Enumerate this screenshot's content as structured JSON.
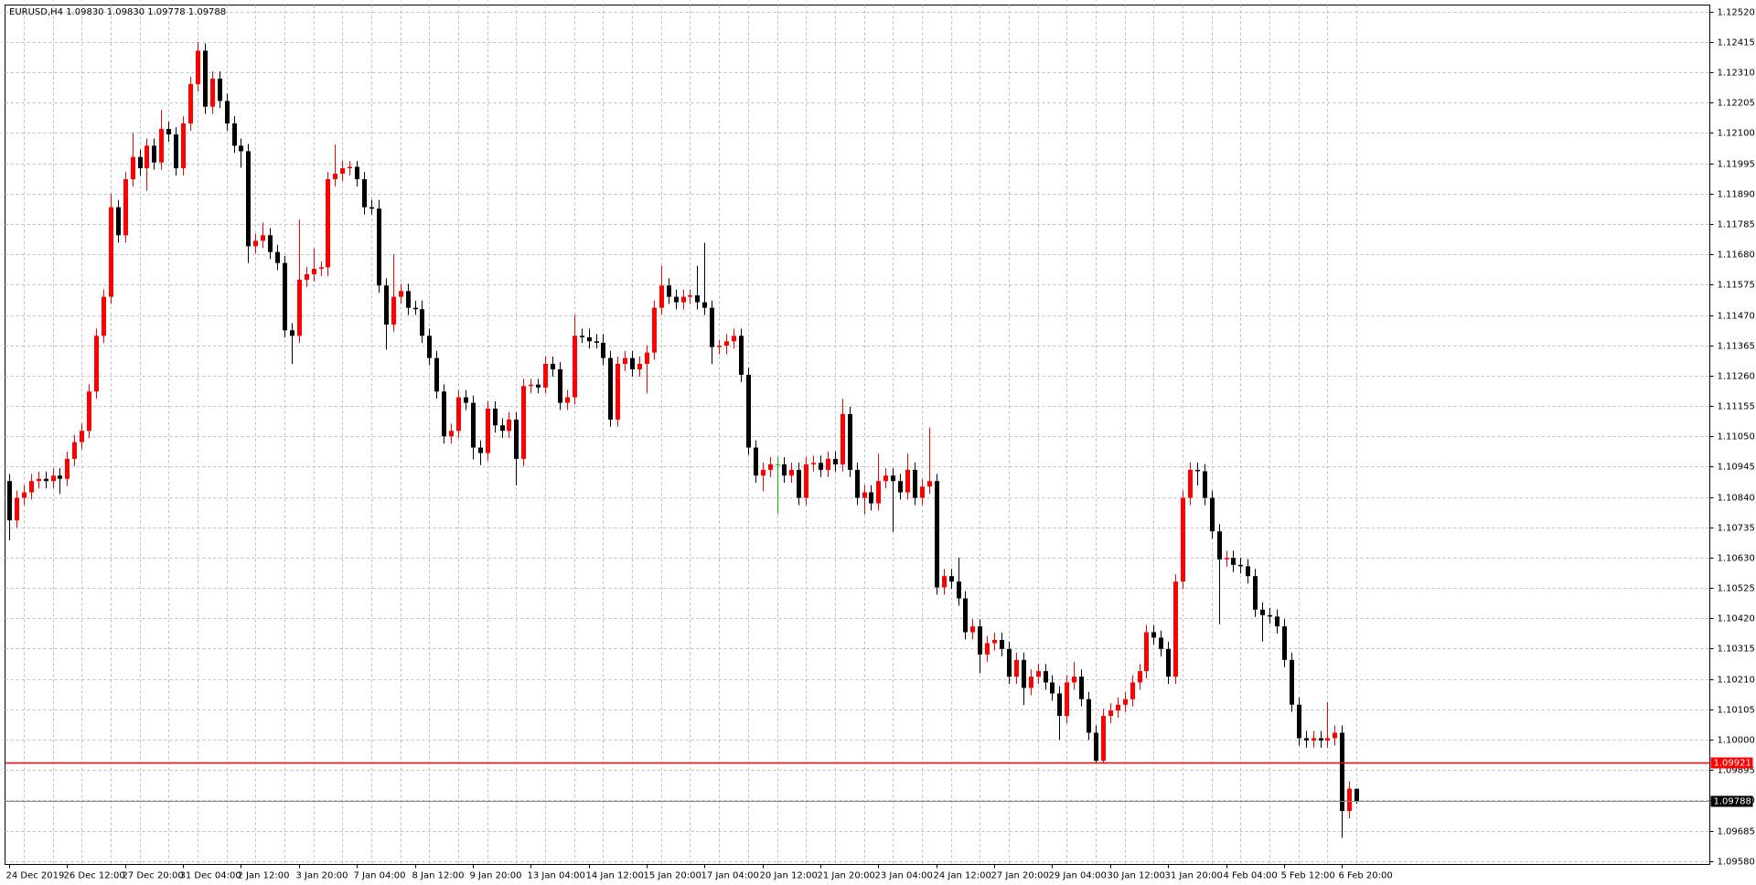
{
  "chart_data": {
    "type": "candlestick",
    "title": "EURUSD,H4  1.09830 1.09830 1.09778 1.09788",
    "up_color": "#ff0000",
    "down_color": "#000000",
    "doji_color": "#00c800",
    "grid": true,
    "ylim": [
      1.09568,
      1.12543
    ],
    "yticks": [
      {
        "value": 1.1252,
        "label": "1.12520"
      },
      1.12415,
      {
        "value": 1.1231,
        "label": "1.12310"
      },
      1.12205,
      {
        "value": 1.121,
        "label": "1.12100"
      },
      1.11995,
      {
        "value": 1.1189,
        "label": "1.11890"
      },
      1.11785,
      {
        "value": 1.1168,
        "label": "1.11680"
      },
      1.11575,
      {
        "value": 1.1147,
        "label": "1.11470"
      },
      1.11365,
      {
        "value": 1.1126,
        "label": "1.11260"
      },
      1.11155,
      {
        "value": 1.1105,
        "label": "1.11050"
      },
      1.10945,
      {
        "value": 1.1084,
        "label": "1.10840"
      },
      1.10735,
      {
        "value": 1.1063,
        "label": "1.10630"
      },
      1.10525,
      {
        "value": 1.1042,
        "label": "1.10420"
      },
      1.10315,
      {
        "value": 1.1021,
        "label": "1.10210"
      },
      1.10105,
      {
        "value": 1.1,
        "label": "1.10000"
      },
      1.09895,
      {
        "value": 1.0979,
        "label": "1.09790"
      },
      1.09685,
      {
        "value": 1.0958,
        "label": "1.09580"
      }
    ],
    "level_line": {
      "value": 1.09921,
      "color": "#ff0000"
    },
    "bid_line": {
      "value": 1.09788,
      "color": "#778899"
    },
    "categories": [
      "24 Dec 2019",
      null,
      null,
      null,
      null,
      null,
      null,
      null,
      "26 Dec 12:00",
      null,
      null,
      null,
      null,
      null,
      null,
      null,
      "27 Dec 20:00",
      null,
      null,
      null,
      null,
      null,
      null,
      null,
      "31 Dec 04:00",
      null,
      null,
      null,
      null,
      null,
      null,
      null,
      "2 Jan 12:00",
      null,
      null,
      null,
      null,
      null,
      null,
      null,
      "3 Jan 20:00",
      null,
      null,
      null,
      null,
      null,
      null,
      null,
      "7 Jan 04:00",
      null,
      null,
      null,
      null,
      null,
      null,
      null,
      "8 Jan 12:00",
      null,
      null,
      null,
      null,
      null,
      null,
      null,
      "9 Jan 20:00",
      null,
      null,
      null,
      null,
      null,
      null,
      null,
      "13 Jan 04:00",
      null,
      null,
      null,
      null,
      null,
      null,
      null,
      "14 Jan 12:00",
      null,
      null,
      null,
      null,
      null,
      null,
      null,
      "15 Jan 20:00",
      null,
      null,
      null,
      null,
      null,
      null,
      null,
      "17 Jan 04:00",
      null,
      null,
      null,
      null,
      null,
      null,
      null,
      "20 Jan 12:00",
      null,
      null,
      null,
      null,
      null,
      null,
      null,
      "21 Jan 20:00",
      null,
      null,
      null,
      null,
      null,
      null,
      null,
      "23 Jan 04:00",
      null,
      null,
      null,
      null,
      null,
      null,
      null,
      "24 Jan 12:00",
      null,
      null,
      null,
      null,
      null,
      null,
      null,
      "27 Jan 20:00",
      null,
      null,
      null,
      null,
      null,
      null,
      null,
      "29 Jan 04:00",
      null,
      null,
      null,
      null,
      null,
      null,
      null,
      "30 Jan 12:00",
      null,
      null,
      null,
      null,
      null,
      null,
      null,
      "31 Jan 20:00",
      null,
      null,
      null,
      null,
      null,
      null,
      null,
      "4 Feb 04:00",
      null,
      null,
      null,
      null,
      null,
      null,
      null,
      "5 Feb 12:00",
      null,
      null,
      null,
      null,
      null,
      null,
      null,
      "6 Feb 20:00",
      null,
      null
    ],
    "open": [
      1.10895,
      1.10759,
      1.10837,
      1.10856,
      1.10895,
      1.10903,
      1.10895,
      1.10914,
      1.10903,
      1.10972,
      1.1103,
      1.11069,
      1.11205,
      1.11398,
      1.11533,
      1.11843,
      1.11746,
      1.1194,
      1.12017,
      1.11978,
      1.12056,
      1.11998,
      1.12114,
      1.12095,
      1.11978,
      1.12133,
      1.12269,
      1.12385,
      1.12191,
      1.12288,
      1.12211,
      1.12133,
      1.12056,
      1.12037,
      1.11708,
      1.11727,
      1.11746,
      1.11688,
      1.1165,
      1.11417,
      1.11398,
      1.11592,
      1.11611,
      1.1163,
      1.11635,
      1.1194,
      1.11959,
      1.11978,
      1.11983,
      1.1194,
      1.11843,
      1.11838,
      1.11572,
      1.11437,
      1.11533,
      1.11553,
      1.11495,
      1.1149,
      1.11398,
      1.11321,
      1.11205,
      1.1105,
      1.11069,
      1.11185,
      1.11166,
      1.11011,
      1.10992,
      1.11146,
      1.11088,
      1.11069,
      1.11108,
      1.10972,
      1.11224,
      1.11229,
      1.11219,
      1.11301,
      1.11282,
      1.11166,
      1.11185,
      1.11398,
      1.11393,
      1.11379,
      1.11374,
      1.11321,
      1.11108,
      1.11301,
      1.11321,
      1.11282,
      1.11301,
      1.1134,
      1.11495,
      1.11572,
      1.11533,
      1.11514,
      1.11533,
      1.11538,
      1.11514,
      1.11495,
      1.11359,
      1.11364,
      1.11379,
      1.11398,
      1.11263,
      1.11011,
      1.10914,
      1.10934,
      1.10953,
      1.10953,
      1.10914,
      1.10934,
      1.10837,
      1.10953,
      1.10958,
      1.10934,
      1.10972,
      1.10953,
      1.11127,
      1.10934,
      1.10837,
      1.10856,
      1.10818,
      1.10895,
      1.10914,
      1.10895,
      1.10856,
      1.10934,
      1.10837,
      1.10876,
      1.10895,
      1.10527,
      1.10566,
      1.10547,
      1.10489,
      1.10372,
      1.10392,
      1.10295,
      1.10334,
      1.10345,
      1.10314,
      1.10218,
      1.10276,
      1.10179,
      1.10218,
      1.10237,
      1.10198,
      1.1016,
      1.10082,
      1.10198,
      1.10218,
      1.1014,
      1.10024,
      1.09927,
      1.10082,
      1.10101,
      1.10121,
      1.1014,
      1.10198,
      1.10237,
      1.10372,
      1.10353,
      1.10314,
      1.10218,
      1.10547,
      1.10837,
      1.10934,
      1.10929,
      1.10837,
      1.10721,
      1.10624,
      1.10629,
      1.10605,
      1.106,
      1.10566,
      1.1045,
      1.10431,
      1.10426,
      1.10392,
      1.10276,
      1.10121,
      1.10005,
      1.09997,
      1.10005,
      1.09997,
      1.10005,
      1.10024,
      1.09753,
      1.0983
    ],
    "high": [
      1.1092,
      1.10862,
      1.10881,
      1.1092,
      1.10928,
      1.10928,
      1.10939,
      1.10939,
      1.10997,
      1.11055,
      1.11094,
      1.1123,
      1.11423,
      1.11558,
      1.1189,
      1.11868,
      1.11965,
      1.121,
      1.12042,
      1.12081,
      1.12081,
      1.1218,
      1.12139,
      1.1212,
      1.12158,
      1.12294,
      1.12415,
      1.1241,
      1.12313,
      1.12313,
      1.12236,
      1.12158,
      1.12081,
      1.12062,
      1.11752,
      1.1179,
      1.11771,
      1.11713,
      1.11675,
      1.11442,
      1.118,
      1.11636,
      1.117,
      1.11655,
      1.11965,
      1.1206,
      1.12003,
      1.12003,
      1.12003,
      1.11965,
      1.11868,
      1.11868,
      1.11597,
      1.1168,
      1.11578,
      1.11578,
      1.1152,
      1.1152,
      1.11423,
      1.11346,
      1.1123,
      1.11094,
      1.1121,
      1.1121,
      1.11191,
      1.11036,
      1.11171,
      1.11171,
      1.11113,
      1.11133,
      1.11133,
      1.11249,
      1.11249,
      1.11249,
      1.11326,
      1.11326,
      1.11307,
      1.1121,
      1.1147,
      1.11423,
      1.11423,
      1.11404,
      1.11404,
      1.11346,
      1.11326,
      1.11346,
      1.11346,
      1.11326,
      1.11365,
      1.1152,
      1.1164,
      1.11597,
      1.11558,
      1.11558,
      1.11558,
      1.1164,
      1.1172,
      1.1152,
      1.11384,
      1.11404,
      1.11423,
      1.11423,
      1.11288,
      1.11036,
      1.10959,
      1.10978,
      1.10978,
      1.10978,
      1.10959,
      1.10959,
      1.10978,
      1.10983,
      1.10983,
      1.10997,
      1.10997,
      1.1118,
      1.11152,
      1.10959,
      1.10881,
      1.10881,
      1.1099,
      1.10939,
      1.10939,
      1.1092,
      1.1099,
      1.10959,
      1.10901,
      1.1108,
      1.1092,
      1.10591,
      1.10591,
      1.1063,
      1.10514,
      1.10417,
      1.10417,
      1.10359,
      1.1037,
      1.1037,
      1.10339,
      1.10301,
      1.10301,
      1.10243,
      1.10262,
      1.10262,
      1.10223,
      1.10185,
      1.10223,
      1.1027,
      1.10243,
      1.10165,
      1.10049,
      1.10107,
      1.10126,
      1.10146,
      1.10165,
      1.10223,
      1.10262,
      1.10397,
      1.10397,
      1.10378,
      1.10339,
      1.10572,
      1.10862,
      1.10959,
      1.10959,
      1.10954,
      1.10862,
      1.10746,
      1.10654,
      1.10654,
      1.1063,
      1.10625,
      1.10591,
      1.10475,
      1.10456,
      1.10451,
      1.10417,
      1.10301,
      1.10146,
      1.1003,
      1.1003,
      1.1003,
      1.1013,
      1.10049,
      1.10049,
      1.09855,
      1.0983
    ],
    "low": [
      1.1069,
      1.10734,
      1.10812,
      1.10831,
      1.1087,
      1.1087,
      1.1087,
      1.1085,
      1.10878,
      1.10947,
      1.11005,
      1.11044,
      1.1118,
      1.11373,
      1.11508,
      1.11721,
      1.11721,
      1.11915,
      1.11953,
      1.119,
      1.11973,
      1.11973,
      1.1207,
      1.11953,
      1.11953,
      1.12108,
      1.12244,
      1.12166,
      1.12166,
      1.12186,
      1.12108,
      1.12031,
      1.1198,
      1.1165,
      1.11683,
      1.11702,
      1.11663,
      1.11625,
      1.11392,
      1.113,
      1.11373,
      1.11567,
      1.11586,
      1.11605,
      1.11605,
      1.11915,
      1.11934,
      1.11953,
      1.11915,
      1.11818,
      1.11818,
      1.11547,
      1.1135,
      1.11412,
      1.11508,
      1.1147,
      1.1147,
      1.11373,
      1.11296,
      1.1118,
      1.11025,
      1.11025,
      1.11044,
      1.11141,
      1.1097,
      1.1095,
      1.10967,
      1.11063,
      1.11044,
      1.11044,
      1.1088,
      1.10947,
      1.11199,
      1.11199,
      1.11199,
      1.11257,
      1.11141,
      1.11141,
      1.1116,
      1.11373,
      1.11354,
      1.11354,
      1.11296,
      1.11083,
      1.11083,
      1.11276,
      1.11257,
      1.11257,
      1.112,
      1.11315,
      1.1147,
      1.11508,
      1.11489,
      1.11489,
      1.11508,
      1.11489,
      1.1147,
      1.113,
      1.11334,
      1.11334,
      1.11354,
      1.11238,
      1.10986,
      1.10889,
      1.1086,
      1.10909,
      1.1078,
      1.10889,
      1.10889,
      1.10812,
      1.10812,
      1.10928,
      1.10909,
      1.10909,
      1.10928,
      1.10928,
      1.10909,
      1.10812,
      1.1078,
      1.10793,
      1.10793,
      1.1087,
      1.1072,
      1.10831,
      1.10831,
      1.10812,
      1.10812,
      1.10851,
      1.10502,
      1.10502,
      1.10522,
      1.10464,
      1.10347,
      1.10347,
      1.1023,
      1.1027,
      1.10309,
      1.10289,
      1.10193,
      1.10193,
      1.1012,
      1.10154,
      1.10193,
      1.10173,
      1.10135,
      1.1,
      1.10057,
      1.10173,
      1.10115,
      1.09999,
      1.09921,
      1.09921,
      1.10057,
      1.10076,
      1.10096,
      1.10115,
      1.10173,
      1.10212,
      1.10328,
      1.10289,
      1.10193,
      1.10193,
      1.10522,
      1.10812,
      1.1088,
      1.10812,
      1.10696,
      1.104,
      1.10599,
      1.1058,
      1.10575,
      1.10541,
      1.10425,
      1.1034,
      1.10401,
      1.10367,
      1.10251,
      1.10096,
      1.0998,
      1.09972,
      1.09972,
      1.09972,
      1.09972,
      1.0998,
      1.0966,
      1.09728,
      1.09778
    ],
    "close": [
      1.10759,
      1.10837,
      1.10856,
      1.10895,
      1.10903,
      1.10895,
      1.10914,
      1.10903,
      1.10972,
      1.1103,
      1.11069,
      1.11205,
      1.11398,
      1.11533,
      1.11843,
      1.11746,
      1.1194,
      1.12017,
      1.11978,
      1.12056,
      1.11998,
      1.12114,
      1.12095,
      1.11978,
      1.12133,
      1.12269,
      1.12385,
      1.12191,
      1.12288,
      1.12211,
      1.12133,
      1.12056,
      1.12037,
      1.11708,
      1.11727,
      1.11746,
      1.11688,
      1.1165,
      1.11417,
      1.11398,
      1.11592,
      1.11611,
      1.1163,
      1.11635,
      1.1194,
      1.11959,
      1.11978,
      1.11983,
      1.1194,
      1.11843,
      1.11838,
      1.11572,
      1.11437,
      1.11533,
      1.11553,
      1.11495,
      1.1149,
      1.11398,
      1.11321,
      1.11205,
      1.1105,
      1.11069,
      1.11185,
      1.11166,
      1.11011,
      1.10992,
      1.11146,
      1.11088,
      1.11069,
      1.11108,
      1.10972,
      1.11224,
      1.11229,
      1.11219,
      1.11301,
      1.11282,
      1.11166,
      1.11185,
      1.11398,
      1.11393,
      1.11379,
      1.11374,
      1.11321,
      1.11108,
      1.11301,
      1.11321,
      1.11282,
      1.11301,
      1.1134,
      1.11495,
      1.11572,
      1.11533,
      1.11514,
      1.11533,
      1.11538,
      1.11514,
      1.11495,
      1.11359,
      1.11364,
      1.11379,
      1.11398,
      1.11263,
      1.11011,
      1.10914,
      1.10934,
      1.10953,
      1.10953,
      1.10914,
      1.10934,
      1.10837,
      1.10953,
      1.10958,
      1.10934,
      1.10972,
      1.10953,
      1.11127,
      1.10934,
      1.10837,
      1.10856,
      1.10818,
      1.10895,
      1.10914,
      1.10895,
      1.10856,
      1.10934,
      1.10837,
      1.10876,
      1.10895,
      1.10527,
      1.10566,
      1.10547,
      1.10489,
      1.10372,
      1.10392,
      1.10295,
      1.10334,
      1.10345,
      1.10314,
      1.10218,
      1.10276,
      1.10179,
      1.10218,
      1.10237,
      1.10198,
      1.1016,
      1.10082,
      1.10198,
      1.10218,
      1.1014,
      1.10024,
      1.09927,
      1.10082,
      1.10101,
      1.10121,
      1.1014,
      1.10198,
      1.10237,
      1.10372,
      1.10353,
      1.10314,
      1.10218,
      1.10547,
      1.10837,
      1.10934,
      1.10929,
      1.10837,
      1.10721,
      1.10624,
      1.10629,
      1.10605,
      1.106,
      1.10566,
      1.1045,
      1.10431,
      1.10426,
      1.10392,
      1.10276,
      1.10121,
      1.10005,
      1.09997,
      1.10005,
      1.09997,
      1.10005,
      1.10024,
      1.09753,
      1.0983,
      1.09788
    ]
  }
}
